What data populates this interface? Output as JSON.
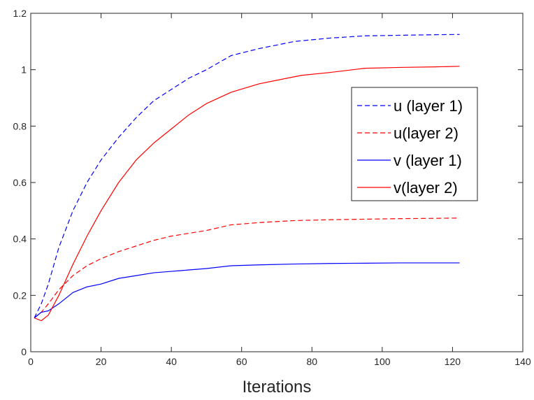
{
  "chart_data": {
    "type": "line",
    "title": "",
    "xlabel": "Iterations",
    "ylabel": "",
    "xlim": [
      0,
      140
    ],
    "ylim": [
      0,
      1.2
    ],
    "xticks": [
      "0",
      "20",
      "40",
      "60",
      "80",
      "100",
      "120",
      "140"
    ],
    "yticks": [
      "0",
      "0.2",
      "0.4",
      "0.6",
      "0.8",
      "1",
      "1.2"
    ],
    "grid": false,
    "legend_position": "top-right",
    "series": [
      {
        "name": "u (layer 1)",
        "color": "#0000ff",
        "dash": "dashed",
        "x": [
          1,
          3,
          5,
          8,
          12,
          16,
          20,
          25,
          30,
          35,
          40,
          45,
          50,
          57,
          65,
          75,
          85,
          95,
          105,
          115,
          122
        ],
        "y": [
          0.12,
          0.17,
          0.24,
          0.37,
          0.5,
          0.6,
          0.68,
          0.76,
          0.83,
          0.89,
          0.93,
          0.97,
          1.0,
          1.05,
          1.075,
          1.1,
          1.112,
          1.12,
          1.122,
          1.124,
          1.125
        ]
      },
      {
        "name": "u(layer 2)",
        "color": "#ff0000",
        "dash": "dashed",
        "x": [
          1,
          3,
          5,
          8,
          12,
          16,
          20,
          25,
          30,
          35,
          40,
          45,
          50,
          57,
          65,
          75,
          85,
          95,
          105,
          115,
          122
        ],
        "y": [
          0.12,
          0.14,
          0.17,
          0.22,
          0.27,
          0.305,
          0.33,
          0.355,
          0.375,
          0.395,
          0.41,
          0.42,
          0.43,
          0.45,
          0.458,
          0.465,
          0.468,
          0.47,
          0.472,
          0.473,
          0.474
        ]
      },
      {
        "name": "v (layer 1)",
        "color": "#0000ff",
        "dash": "solid",
        "x": [
          1,
          3,
          5,
          8,
          12,
          16,
          20,
          25,
          30,
          35,
          40,
          45,
          50,
          57,
          65,
          75,
          85,
          95,
          105,
          115,
          122
        ],
        "y": [
          0.12,
          0.14,
          0.145,
          0.17,
          0.21,
          0.23,
          0.24,
          0.26,
          0.27,
          0.28,
          0.285,
          0.29,
          0.295,
          0.305,
          0.308,
          0.311,
          0.313,
          0.314,
          0.315,
          0.315,
          0.315
        ]
      },
      {
        "name": "v(layer 2)",
        "color": "#ff0000",
        "dash": "solid",
        "x": [
          1,
          3,
          5,
          8,
          12,
          16,
          20,
          25,
          30,
          35,
          40,
          45,
          50,
          57,
          65,
          77,
          85,
          95,
          105,
          115,
          122
        ],
        "y": [
          0.12,
          0.11,
          0.13,
          0.2,
          0.31,
          0.41,
          0.5,
          0.6,
          0.68,
          0.74,
          0.79,
          0.84,
          0.88,
          0.92,
          0.95,
          0.98,
          0.99,
          1.005,
          1.008,
          1.01,
          1.012
        ]
      }
    ]
  }
}
